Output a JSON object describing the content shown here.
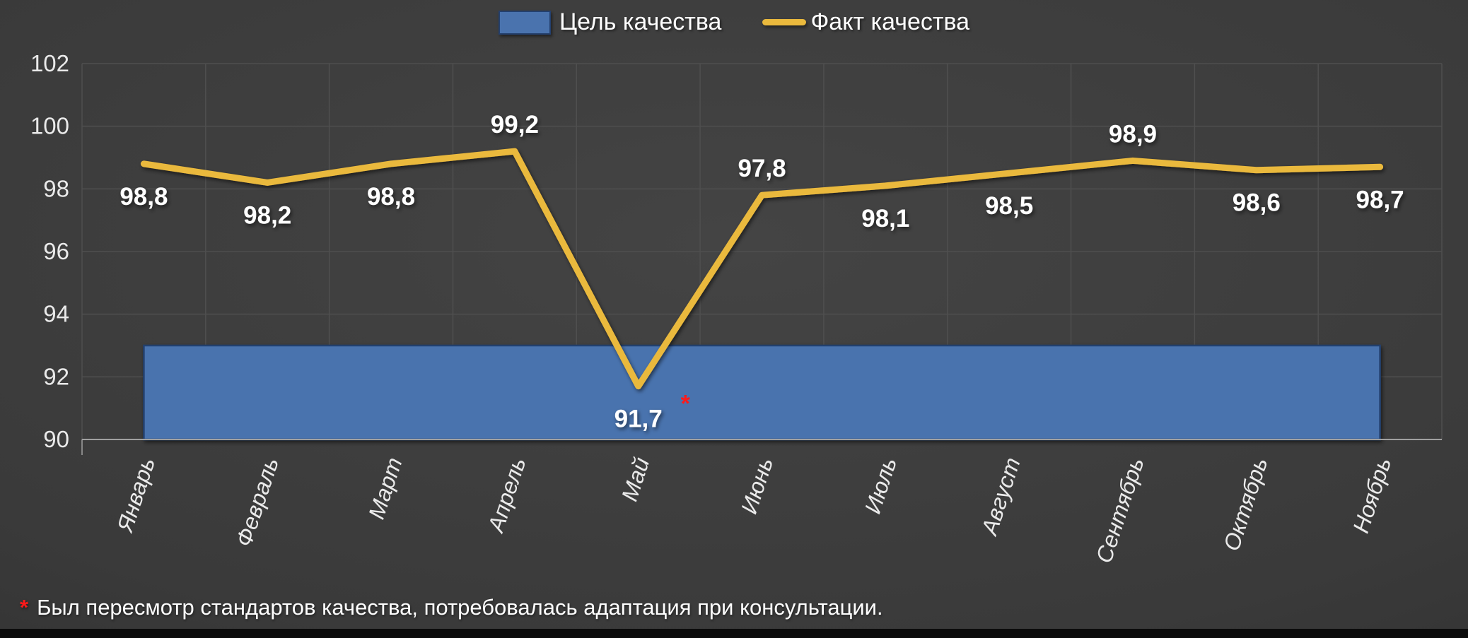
{
  "legend": {
    "items": [
      {
        "label": "Цель качества",
        "swatch": "bar"
      },
      {
        "label": "Факт качества",
        "swatch": "line"
      }
    ]
  },
  "footnote": {
    "marker": "*",
    "text": "Был пересмотр стандартов качества, потребовалась адаптация при консультации."
  },
  "colors": {
    "background_center": "#444444",
    "background_edge": "#242424",
    "grid": "#4f4f4f",
    "axis": "#a0a0a0",
    "tick_text": "#eaeaea",
    "target_fill": "#4a73ae",
    "target_border": "#24406e",
    "fact_line": "#eab93d",
    "data_label": "#ffffff",
    "asterisk": "#ff1a1a",
    "footnote_text": "#ffffff"
  },
  "chart_data": {
    "type": "line",
    "title": "",
    "xlabel": "",
    "ylabel": "",
    "categories": [
      "Январь",
      "Февраль",
      "Март",
      "Апрель",
      "Май",
      "Июнь",
      "Июль",
      "Август",
      "Сентябрь",
      "Октябрь",
      "Ноябрь"
    ],
    "series": [
      {
        "name": "Цель качества",
        "type": "bar-band",
        "value": 93,
        "color_key": "target_fill"
      },
      {
        "name": "Факт качества",
        "type": "line",
        "values": [
          98.8,
          98.2,
          98.8,
          99.2,
          91.7,
          97.8,
          98.1,
          98.5,
          98.9,
          98.6,
          98.7
        ],
        "color_key": "fact_line"
      }
    ],
    "data_labels": [
      "98,8",
      "98,2",
      "98,8",
      "99,2",
      "91,7",
      "97,8",
      "98,1",
      "98,5",
      "98,9",
      "98,6",
      "98,7"
    ],
    "label_positions": [
      "below",
      "below",
      "below",
      "above",
      "below",
      "above",
      "below",
      "below",
      "above",
      "below",
      "below"
    ],
    "annotation": {
      "index": 4,
      "marker": "*"
    },
    "ylim": [
      90,
      102
    ],
    "yticks": [
      90,
      92,
      94,
      96,
      98,
      100,
      102
    ],
    "grid": true,
    "legend_position": "top",
    "x_tick_rotation_deg": -72
  }
}
